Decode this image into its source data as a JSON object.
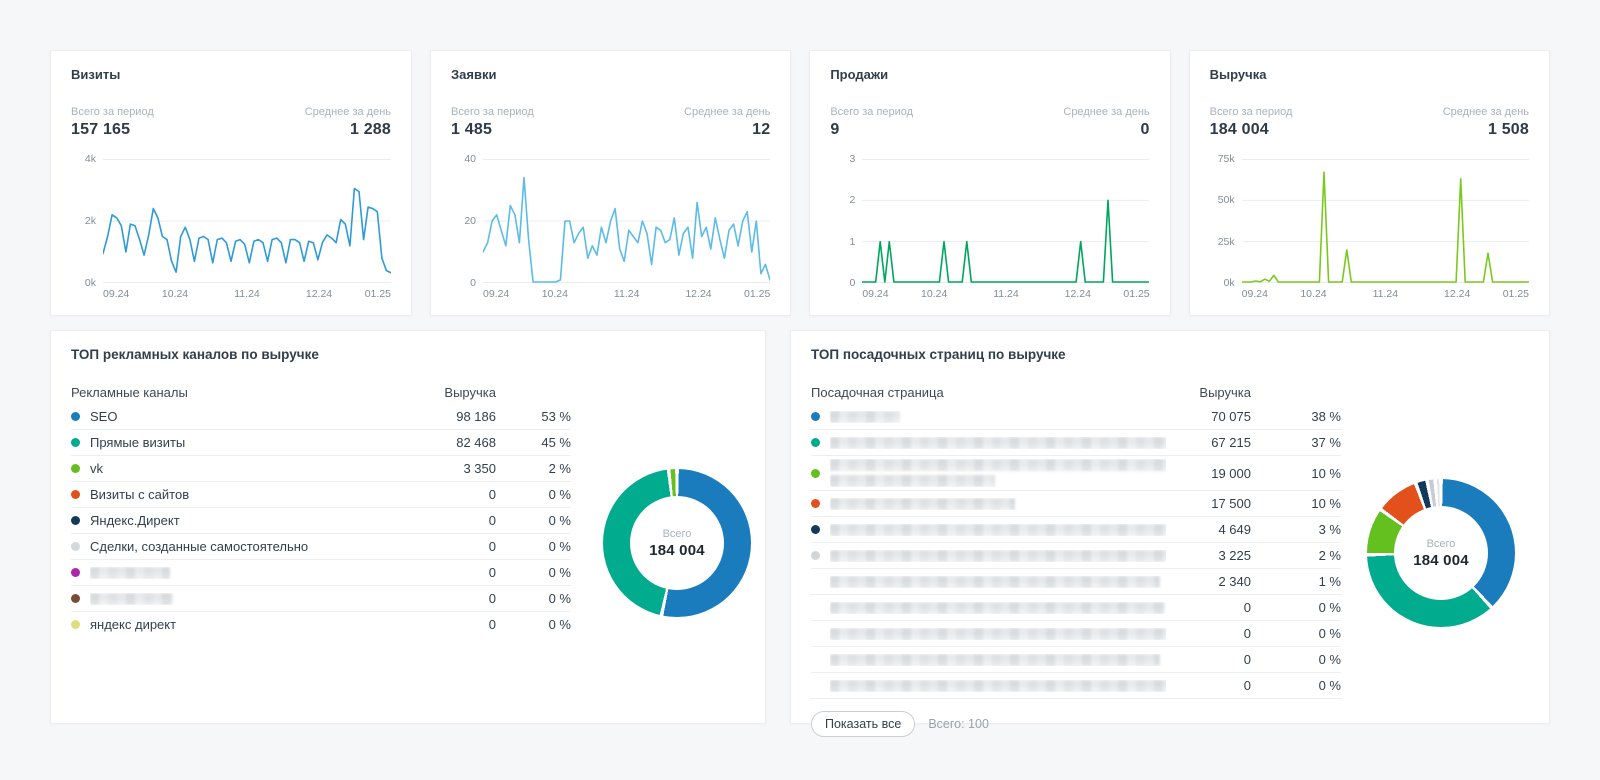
{
  "cards": [
    {
      "title": "Визиты",
      "total_label": "Всего за период",
      "total": "157 165",
      "avg_label": "Среднее за день",
      "avg": "1 288",
      "chart_data": {
        "type": "line",
        "color": "#2e9ad8",
        "ymax": 4000,
        "grid": true,
        "yticks": [
          {
            "v": 4000,
            "label": "4k"
          },
          {
            "v": 2000,
            "label": "2k"
          },
          {
            "v": 0,
            "label": "0k"
          }
        ],
        "xticks": [
          "09.24",
          "10.24",
          "11.24",
          "12.24",
          "01.25"
        ],
        "values": [
          950,
          1500,
          2200,
          2100,
          1850,
          1000,
          1900,
          1850,
          1400,
          900,
          1550,
          2400,
          2100,
          1500,
          1400,
          700,
          350,
          1500,
          1800,
          1400,
          700,
          1450,
          1500,
          1400,
          650,
          1400,
          1450,
          1300,
          700,
          1350,
          1400,
          1250,
          650,
          1350,
          1400,
          1300,
          700,
          1400,
          1450,
          1300,
          650,
          1400,
          1400,
          1300,
          700,
          1350,
          1300,
          750,
          1300,
          1550,
          1450,
          1300,
          2050,
          1900,
          1200,
          3050,
          2950,
          1400,
          2450,
          2400,
          2300,
          800,
          400,
          330
        ]
      }
    },
    {
      "title": "Заявки",
      "total_label": "Всего за период",
      "total": "1 485",
      "avg_label": "Среднее за день",
      "avg": "12",
      "chart_data": {
        "type": "line",
        "color": "#5bbbe9",
        "ymax": 40,
        "grid": true,
        "yticks": [
          {
            "v": 40,
            "label": "40"
          },
          {
            "v": 20,
            "label": "20"
          },
          {
            "v": 0,
            "label": "0"
          }
        ],
        "xticks": [
          "09.24",
          "10.24",
          "11.24",
          "12.24",
          "01.25"
        ],
        "values": [
          10,
          13,
          20,
          22,
          17,
          12,
          25,
          22,
          13,
          34,
          14,
          0,
          0,
          0,
          0,
          0,
          0,
          1,
          20,
          20,
          13,
          16,
          18,
          8,
          12,
          9,
          18,
          13,
          20,
          24,
          11,
          7,
          17,
          15,
          13,
          20,
          16,
          6,
          18,
          17,
          13,
          14,
          21,
          9,
          16,
          18,
          8,
          26,
          15,
          18,
          11,
          21,
          14,
          8,
          17,
          19,
          12,
          20,
          23,
          10,
          20,
          3,
          6,
          1
        ]
      }
    },
    {
      "title": "Продажи",
      "total_label": "Всего за период",
      "total": "9",
      "avg_label": "Среднее за день",
      "avg": "0",
      "chart_data": {
        "type": "line",
        "color": "#00a65c",
        "ymax": 3,
        "grid": true,
        "yticks": [
          {
            "v": 3,
            "label": "3"
          },
          {
            "v": 2,
            "label": "2"
          },
          {
            "v": 1,
            "label": "1"
          },
          {
            "v": 0,
            "label": "0"
          }
        ],
        "xticks": [
          "09.24",
          "10.24",
          "11.24",
          "12.24",
          "01.25"
        ],
        "values": [
          0,
          0,
          0,
          0,
          1,
          0,
          1,
          0,
          0,
          0,
          0,
          0,
          0,
          0,
          0,
          0,
          0,
          0,
          1,
          0,
          0,
          0,
          0,
          1,
          0,
          0,
          0,
          0,
          0,
          0,
          0,
          0,
          0,
          0,
          0,
          0,
          0,
          0,
          0,
          0,
          0,
          0,
          0,
          0,
          0,
          0,
          0,
          0,
          1,
          0,
          0,
          0,
          0,
          0,
          2,
          0,
          0,
          0,
          0,
          0,
          0,
          0,
          0,
          0
        ]
      }
    },
    {
      "title": "Выручка",
      "total_label": "Всего за период",
      "total": "184 004",
      "avg_label": "Среднее за день",
      "avg": "1 508",
      "chart_data": {
        "type": "line",
        "color": "#7ac91e",
        "ymax": 75000,
        "grid": true,
        "yticks": [
          {
            "v": 75000,
            "label": "75k"
          },
          {
            "v": 50000,
            "label": "50k"
          },
          {
            "v": 25000,
            "label": "25k"
          },
          {
            "v": 0,
            "label": "0k"
          }
        ],
        "xticks": [
          "09.24",
          "10.24",
          "11.24",
          "12.24",
          "01.25"
        ],
        "values": [
          100,
          150,
          200,
          1200,
          700,
          2300,
          1100,
          4600,
          500,
          300,
          250,
          200,
          300,
          250,
          200,
          250,
          300,
          250,
          67000,
          400,
          300,
          250,
          300,
          20000,
          500,
          300,
          250,
          300,
          250,
          200,
          300,
          250,
          200,
          300,
          250,
          300,
          200,
          250,
          300,
          250,
          300,
          250,
          200,
          300,
          250,
          300,
          250,
          200,
          63000,
          500,
          300,
          250,
          300,
          250,
          18000,
          400,
          300,
          250,
          300,
          200,
          250,
          200,
          150,
          100
        ]
      }
    }
  ],
  "panels": [
    {
      "title": "ТОП рекламных каналов по выручке",
      "col_label": "Рекламные каналы",
      "col_value": "Выручка",
      "donut": {
        "type": "pie",
        "center_label": "Всего",
        "center_value": "184 004"
      },
      "rows": [
        {
          "label": "SEO",
          "color": "#1b7cbd",
          "value": 98186,
          "value_str": "98 186",
          "pct": "53 %"
        },
        {
          "label": "Прямые визиты",
          "color": "#00ab8e",
          "value": 82468,
          "value_str": "82 468",
          "pct": "45 %"
        },
        {
          "label": "vk",
          "color": "#63c01f",
          "value": 3350,
          "value_str": "3 350",
          "pct": "2 %"
        },
        {
          "label": "Визиты с сайтов",
          "color": "#e2511c",
          "value": 0,
          "value_str": "0",
          "pct": "0 %"
        },
        {
          "label": "Яндекс.Директ",
          "color": "#11395c",
          "value": 0,
          "value_str": "0",
          "pct": "0 %"
        },
        {
          "label": "Сделки, созданные самостоятельно",
          "color": "#d5d8db",
          "value": 0,
          "value_str": "0",
          "pct": "0 %"
        },
        {
          "blur": 80,
          "color": "#ad24ad",
          "value": 0,
          "value_str": "0",
          "pct": "0 %"
        },
        {
          "blur": 83,
          "color": "#7a4b38",
          "value": 0,
          "value_str": "0",
          "pct": "0 %"
        },
        {
          "label": "яндекс директ",
          "color": "#dbe07c",
          "value": 0,
          "value_str": "0",
          "pct": "0 %"
        }
      ]
    },
    {
      "title": "ТОП посадочных страниц по выручке",
      "col_label": "Посадочная страница",
      "col_value": "Выручка",
      "donut": {
        "type": "pie",
        "center_label": "Всего",
        "center_value": "184 004"
      },
      "footer": {
        "button": "Показать все",
        "total": "Всего: 100"
      },
      "rows": [
        {
          "blur": 70,
          "color": "#1b7cbd",
          "value": 70075,
          "value_str": "70 075",
          "pct": "38 %"
        },
        {
          "blur": 350,
          "color": "#00ab8e",
          "value": 67215,
          "value_str": "67 215",
          "pct": "37 %"
        },
        {
          "blur": 350,
          "blur2": 165,
          "color": "#63c01f",
          "value": 19000,
          "value_str": "19 000",
          "pct": "10 %"
        },
        {
          "blur": 185,
          "color": "#e2511c",
          "value": 17500,
          "value_str": "17 500",
          "pct": "10 %"
        },
        {
          "blur": 350,
          "color": "#11395c",
          "value": 4649,
          "value_str": "4 649",
          "pct": "3 %"
        },
        {
          "blur": 340,
          "color": "#d2d6d9",
          "dcolor": "#c6ccd2",
          "value": 3225,
          "value_str": "3 225",
          "pct": "2 %"
        },
        {
          "blur": 330,
          "dcolor": "#dfe3e6",
          "value": 2340,
          "value_str": "2 340",
          "pct": "1 %"
        },
        {
          "blur": 335,
          "value": 0,
          "value_str": "0",
          "pct": "0 %"
        },
        {
          "blur": 345,
          "value": 0,
          "value_str": "0",
          "pct": "0 %"
        },
        {
          "blur": 330,
          "value": 0,
          "value_str": "0",
          "pct": "0 %"
        },
        {
          "blur": 340,
          "value": 0,
          "value_str": "0",
          "pct": "0 %"
        }
      ]
    }
  ]
}
